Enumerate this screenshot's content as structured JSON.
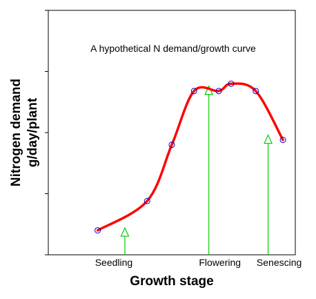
{
  "chart_data": {
    "type": "line",
    "title": "A hypothetical N demand/growth curve",
    "xlabel": "Growth stage",
    "ylabel_lines": [
      "Nitrogen demand",
      "g/day/plant"
    ],
    "xlim": [
      0,
      100
    ],
    "ylim": [
      0,
      100
    ],
    "x_ticks_labeled": false,
    "y_ticks_labeled": false,
    "grid": false,
    "series": [
      {
        "color": "#ff0000",
        "marker_color": "#0000cc",
        "x": [
          20,
          40,
          50,
          59,
          69,
          74,
          84,
          95
        ],
        "y": [
          10,
          22,
          45,
          67,
          67,
          70,
          67,
          47
        ]
      }
    ],
    "annotations": [
      {
        "label": "Seedling",
        "x": 31,
        "y_from": 0,
        "y_to": 11
      },
      {
        "label": "Flowering",
        "x": 65,
        "y_from": 0,
        "y_to": 69
      },
      {
        "label": "Senescing",
        "x": 89,
        "y_from": 0,
        "y_to": 49
      }
    ],
    "colors": {
      "curve": "#ff0000",
      "markers": "#0000cc",
      "arrows": "#00cc00",
      "axes": "#000000"
    }
  }
}
